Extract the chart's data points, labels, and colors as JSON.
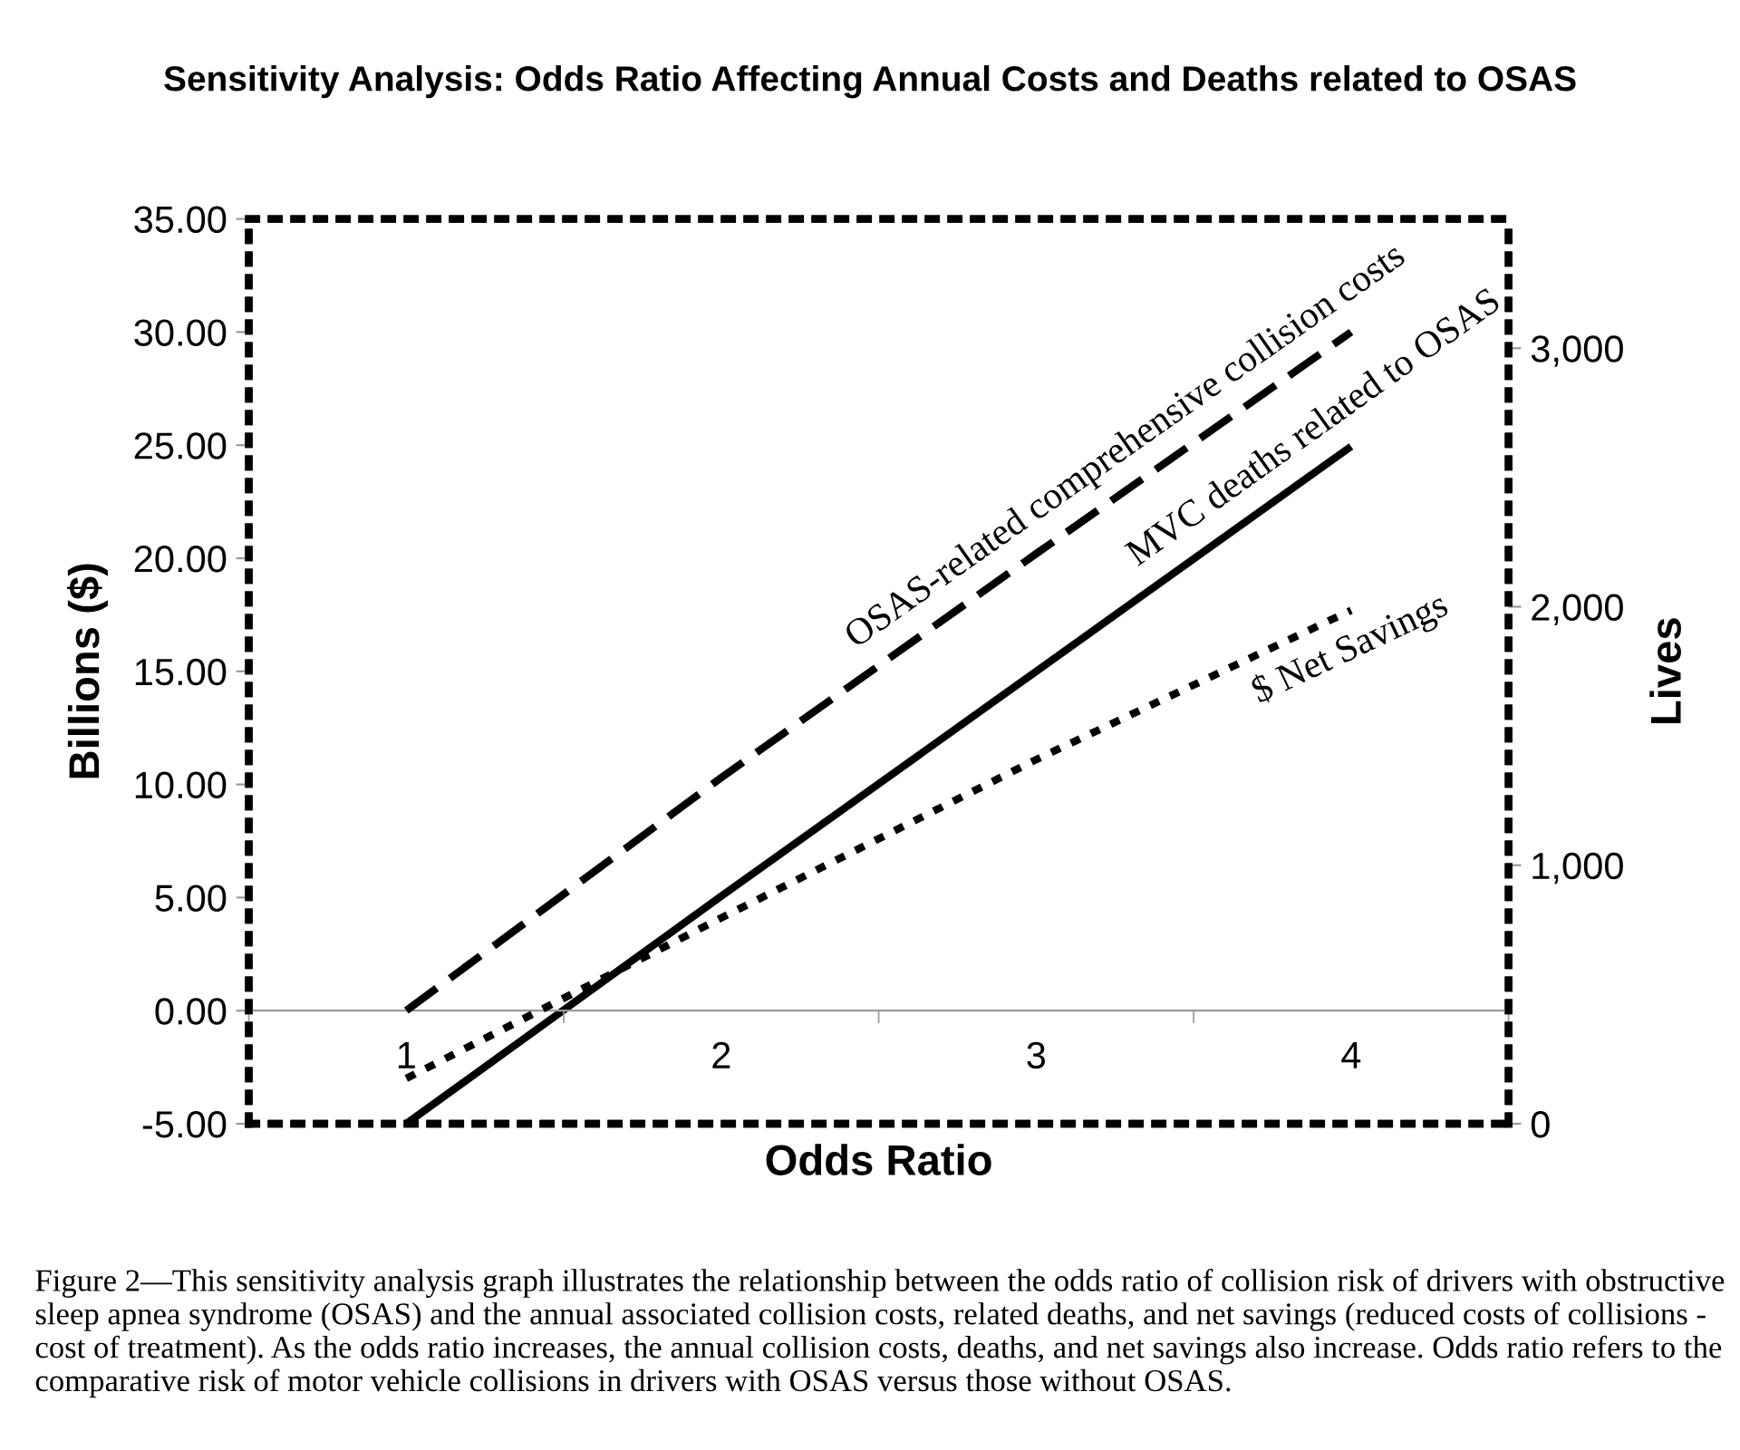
{
  "chart_data": {
    "type": "line",
    "title": "Sensitivity Analysis: Odds Ratio Affecting Annual Costs and Deaths related to OSAS",
    "xlabel": "Odds Ratio",
    "ylabel": "Billions ($)",
    "y2label": "Lives",
    "categories": [
      "1",
      "2",
      "3",
      "4"
    ],
    "series": [
      {
        "name": "OSAS-related comprehensive collision costs",
        "color": "#000000",
        "line_style": "dashed",
        "values": [
          0.0,
          10.3,
          20.2,
          30.0
        ]
      },
      {
        "name": "MVC deaths related to OSAS",
        "color": "#000000",
        "line_style": "solid",
        "axis": "y2",
        "values": [
          0,
          880,
          1750,
          2620
        ]
      },
      {
        "name": "$ Net Savings",
        "color": "#000000",
        "line_style": "dotted",
        "values": [
          -3.0,
          4.1,
          11.1,
          17.7
        ]
      }
    ],
    "ylim": [
      -5,
      35
    ],
    "yticks": [
      {
        "value": -5,
        "label": "-5.00"
      },
      {
        "value": 0,
        "label": "0.00"
      },
      {
        "value": 5,
        "label": "5.00"
      },
      {
        "value": 10,
        "label": "10.00"
      },
      {
        "value": 15,
        "label": "15.00"
      },
      {
        "value": 20,
        "label": "20.00"
      },
      {
        "value": 25,
        "label": "25.00"
      },
      {
        "value": 30,
        "label": "30.00"
      },
      {
        "value": 35,
        "label": "35.00"
      }
    ],
    "y2lim": [
      0,
      3500
    ],
    "y2ticks": [
      0,
      {
        "value": 1000,
        "label": "1,000"
      },
      {
        "value": 2000,
        "label": "2,000"
      },
      {
        "value": 3000,
        "label": "3,000"
      }
    ],
    "grid": false,
    "legend": false,
    "marker": "none",
    "annotations": [
      "Figure 2—This sensitivity analysis graph illustrates the relationship between the odds ratio of collision risk of drivers with obstructive sleep apnea syndrome (OSAS) and the annual associated collision costs, related deaths, and net savings (reduced costs of collisions - cost of treatment). As the odds ratio increases, the annual collision costs, deaths, and net savings also increase. Odds ratio refers to the comparative risk of motor vehicle collisions in drivers with OSAS versus those without OSAS."
    ]
  }
}
